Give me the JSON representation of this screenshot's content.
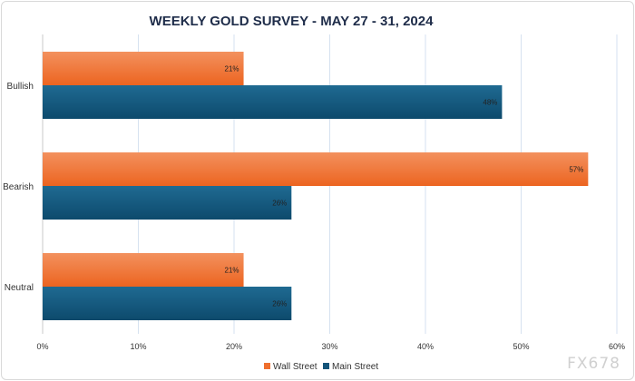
{
  "chart_data": {
    "type": "bar",
    "orientation": "horizontal",
    "title": "WEEKLY GOLD SURVEY - MAY 27 - 31, 2024",
    "categories": [
      "Bullish",
      "Bearish",
      "Neutral"
    ],
    "series": [
      {
        "name": "Wall Street",
        "values": [
          21,
          57,
          21
        ],
        "color": "#ef6f2e"
      },
      {
        "name": "Main Street",
        "values": [
          48,
          26,
          26
        ],
        "color": "#14557a"
      }
    ],
    "xlim": [
      0,
      60
    ],
    "xticks": [
      0,
      10,
      20,
      30,
      40,
      50,
      60
    ],
    "xtick_labels": [
      "0%",
      "10%",
      "20%",
      "30%",
      "40%",
      "50%",
      "60%"
    ],
    "value_suffix": "%",
    "grid": true,
    "legend": "bottom"
  },
  "watermark": "FX678"
}
